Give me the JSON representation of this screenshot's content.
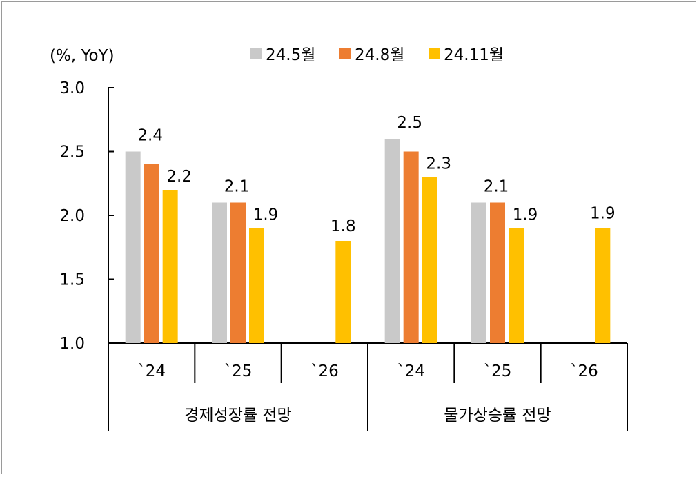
{
  "chart_data": {
    "type": "bar",
    "unit_label": "(%, YoY)",
    "ylim": [
      1.0,
      3.0
    ],
    "yticks": [
      "1.0",
      "1.5",
      "2.0",
      "2.5",
      "3.0"
    ],
    "ytick_values": [
      1.0,
      1.5,
      2.0,
      2.5,
      3.0
    ],
    "legend": {
      "position": "top",
      "entries": [
        "24.5월",
        "24.8월",
        "24.11월"
      ]
    },
    "colors": [
      "#c9c9c9",
      "#ed7d31",
      "#ffc000"
    ],
    "groups": [
      {
        "name": "경제성장률 전망",
        "categories": [
          {
            "label": "`24",
            "values": [
              2.5,
              2.4,
              2.2
            ],
            "labels": [
              "",
              "2.4",
              "2.2"
            ]
          },
          {
            "label": "`25",
            "values": [
              2.1,
              2.1,
              1.9
            ],
            "labels": [
              "",
              "2.1",
              "1.9"
            ]
          },
          {
            "label": "`26",
            "values": [
              null,
              null,
              1.8
            ],
            "labels": [
              "",
              "",
              "1.8"
            ]
          }
        ]
      },
      {
        "name": "물가상승률 전망",
        "categories": [
          {
            "label": "`24",
            "values": [
              2.6,
              2.5,
              2.3
            ],
            "labels": [
              "",
              "2.5",
              "2.3"
            ]
          },
          {
            "label": "`25",
            "values": [
              2.1,
              2.1,
              1.9
            ],
            "labels": [
              "",
              "2.1",
              "1.9"
            ]
          },
          {
            "label": "`26",
            "values": [
              null,
              null,
              1.9
            ],
            "labels": [
              "",
              "",
              "1.9"
            ]
          }
        ]
      }
    ]
  }
}
